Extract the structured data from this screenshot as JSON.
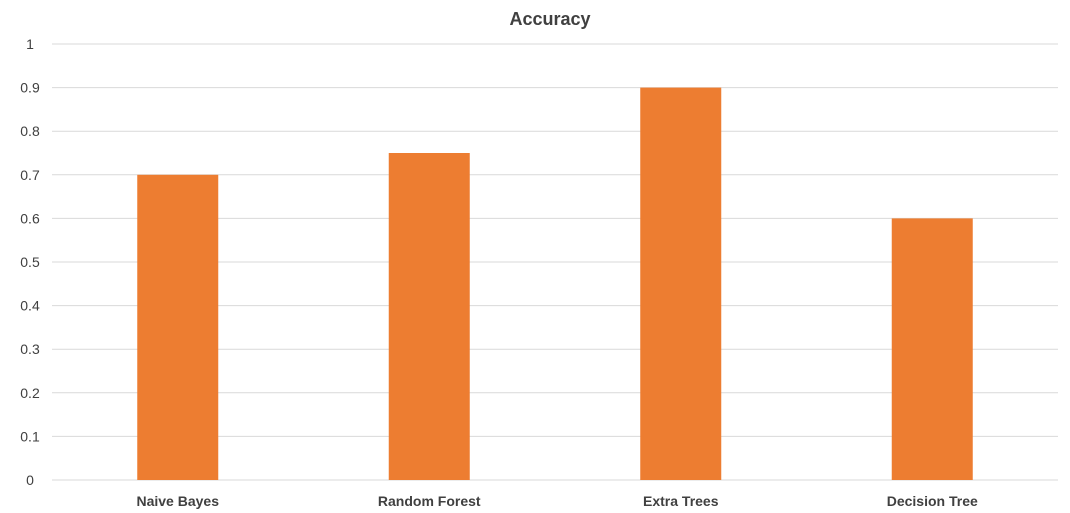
{
  "chart_data": {
    "type": "bar",
    "title": "Accuracy",
    "xlabel": "",
    "ylabel": "",
    "categories": [
      "Naive Bayes",
      "Random Forest",
      "Extra Trees",
      "Decision Tree"
    ],
    "values": [
      0.7,
      0.75,
      0.9,
      0.6
    ],
    "ylim": [
      0,
      1
    ],
    "yticks": [
      "0",
      "0.1",
      "0.2",
      "0.3",
      "0.4",
      "0.5",
      "0.6",
      "0.7",
      "0.8",
      "0.9",
      "1"
    ],
    "grid": true,
    "legend": "none",
    "colors": {
      "bar": "#ED7D31",
      "grid": "#D9D9D9",
      "text": "#404040"
    }
  }
}
